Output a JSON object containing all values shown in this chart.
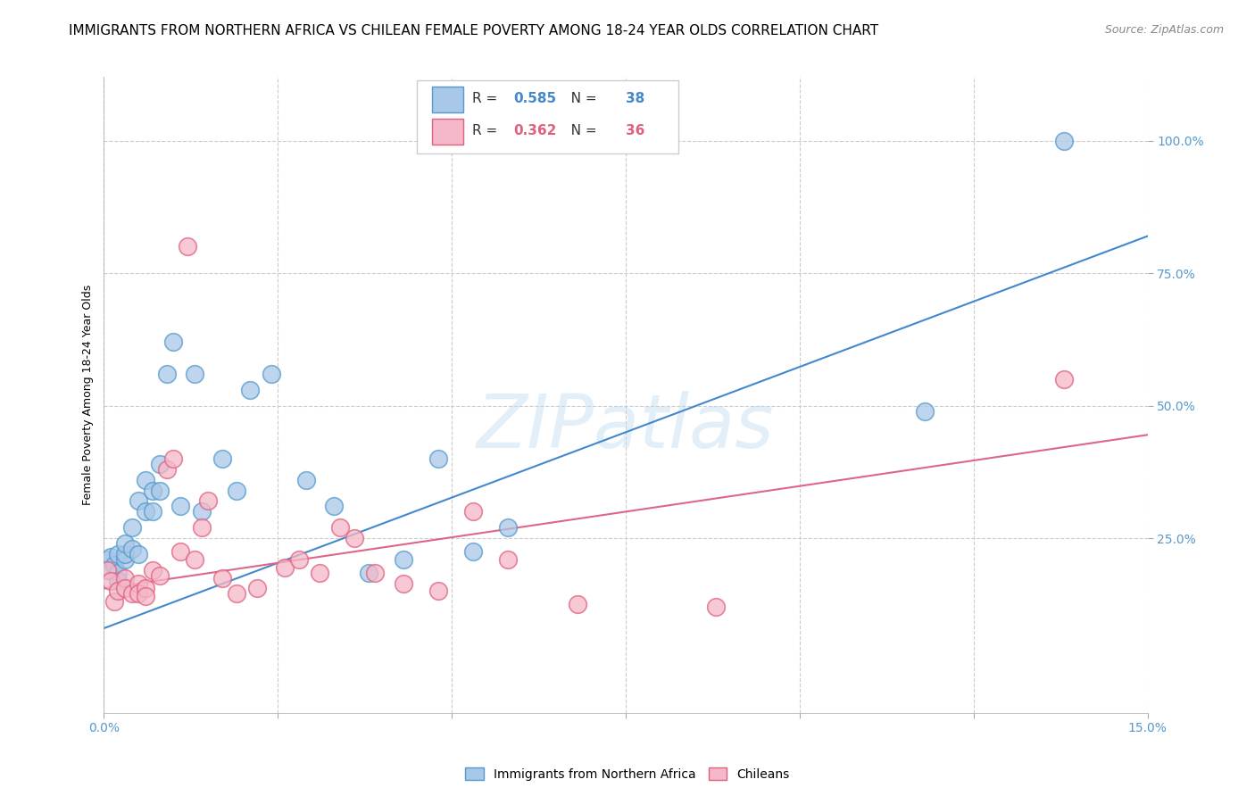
{
  "title": "IMMIGRANTS FROM NORTHERN AFRICA VS CHILEAN FEMALE POVERTY AMONG 18-24 YEAR OLDS CORRELATION CHART",
  "source": "Source: ZipAtlas.com",
  "ylabel": "Female Poverty Among 18-24 Year Olds",
  "xlim": [
    0.0,
    0.15
  ],
  "ylim": [
    -0.08,
    1.12
  ],
  "xticks": [
    0.0,
    0.025,
    0.05,
    0.075,
    0.1,
    0.125,
    0.15
  ],
  "xticklabels": [
    "0.0%",
    "",
    "",
    "",
    "",
    "",
    "15.0%"
  ],
  "yticks": [
    0.25,
    0.5,
    0.75,
    1.0
  ],
  "yticklabels": [
    "25.0%",
    "50.0%",
    "75.0%",
    "100.0%"
  ],
  "blue_color": "#a8c8e8",
  "pink_color": "#f4b8c8",
  "blue_edge_color": "#5599cc",
  "pink_edge_color": "#e06080",
  "blue_line_color": "#4488cc",
  "pink_line_color": "#dd6688",
  "R_blue": 0.585,
  "N_blue": 38,
  "R_pink": 0.362,
  "N_pink": 36,
  "legend_label_blue": "Immigrants from Northern Africa",
  "legend_label_pink": "Chileans",
  "watermark": "ZIPatlas",
  "blue_scatter_x": [
    0.0005,
    0.001,
    0.001,
    0.0015,
    0.002,
    0.002,
    0.002,
    0.003,
    0.003,
    0.003,
    0.004,
    0.004,
    0.005,
    0.005,
    0.006,
    0.006,
    0.007,
    0.007,
    0.008,
    0.008,
    0.009,
    0.01,
    0.011,
    0.013,
    0.014,
    0.017,
    0.019,
    0.021,
    0.024,
    0.029,
    0.033,
    0.038,
    0.043,
    0.048,
    0.053,
    0.058,
    0.118,
    0.138
  ],
  "blue_scatter_y": [
    0.21,
    0.215,
    0.19,
    0.2,
    0.22,
    0.185,
    0.17,
    0.21,
    0.22,
    0.24,
    0.23,
    0.27,
    0.32,
    0.22,
    0.36,
    0.3,
    0.3,
    0.34,
    0.39,
    0.34,
    0.56,
    0.62,
    0.31,
    0.56,
    0.3,
    0.4,
    0.34,
    0.53,
    0.56,
    0.36,
    0.31,
    0.185,
    0.21,
    0.4,
    0.225,
    0.27,
    0.49,
    1.0
  ],
  "pink_scatter_x": [
    0.0005,
    0.001,
    0.0015,
    0.002,
    0.003,
    0.003,
    0.004,
    0.005,
    0.005,
    0.006,
    0.006,
    0.007,
    0.008,
    0.009,
    0.01,
    0.011,
    0.012,
    0.013,
    0.014,
    0.015,
    0.017,
    0.019,
    0.022,
    0.026,
    0.028,
    0.031,
    0.034,
    0.036,
    0.039,
    0.043,
    0.048,
    0.053,
    0.058,
    0.068,
    0.088,
    0.138
  ],
  "pink_scatter_y": [
    0.19,
    0.17,
    0.13,
    0.15,
    0.175,
    0.155,
    0.145,
    0.165,
    0.145,
    0.155,
    0.14,
    0.19,
    0.18,
    0.38,
    0.4,
    0.225,
    0.8,
    0.21,
    0.27,
    0.32,
    0.175,
    0.145,
    0.155,
    0.195,
    0.21,
    0.185,
    0.27,
    0.25,
    0.185,
    0.165,
    0.15,
    0.3,
    0.21,
    0.125,
    0.12,
    0.55
  ],
  "blue_line_x": [
    0.0,
    0.15
  ],
  "blue_line_y": [
    0.08,
    0.82
  ],
  "pink_line_x": [
    0.0,
    0.15
  ],
  "pink_line_y": [
    0.155,
    0.445
  ],
  "background_color": "#ffffff",
  "grid_color": "#cccccc",
  "title_fontsize": 11,
  "axis_label_fontsize": 9,
  "tick_fontsize": 10,
  "tick_color": "#5599cc"
}
